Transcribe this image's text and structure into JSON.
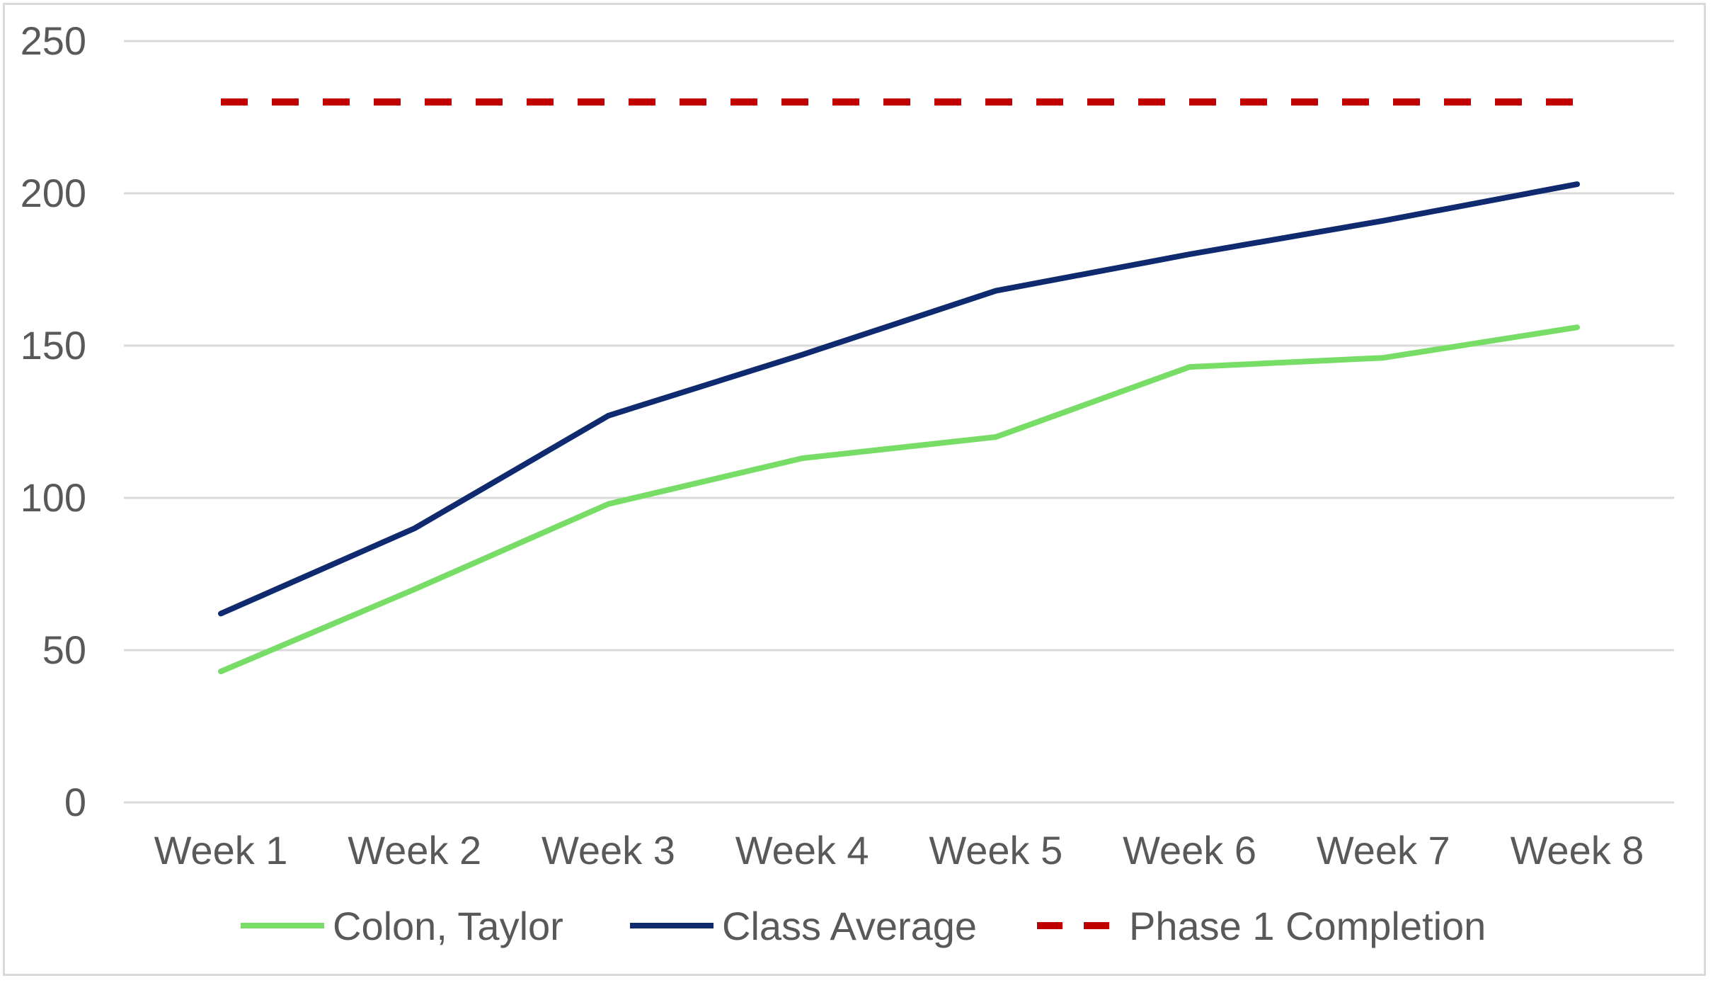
{
  "chart_data": {
    "type": "line",
    "title": "",
    "xlabel": "",
    "ylabel": "",
    "categories": [
      "Week 1",
      "Week 2",
      "Week 3",
      "Week 4",
      "Week 5",
      "Week 6",
      "Week 7",
      "Week 8"
    ],
    "ylim": [
      0,
      250
    ],
    "yticks": [
      0,
      50,
      100,
      150,
      200,
      250
    ],
    "grid": true,
    "legend_position": "bottom",
    "series": [
      {
        "name": "Colon, Taylor",
        "values": [
          43,
          70,
          98,
          113,
          120,
          143,
          146,
          156
        ],
        "color": "#77dd66",
        "style": "solid"
      },
      {
        "name": "Class Average",
        "values": [
          62,
          90,
          127,
          147,
          168,
          180,
          191,
          203
        ],
        "color": "#0f2a6e",
        "style": "solid"
      },
      {
        "name": "Phase 1 Completion",
        "values": [
          230,
          230,
          230,
          230,
          230,
          230,
          230,
          230
        ],
        "color": "#c00000",
        "style": "dashed"
      }
    ]
  }
}
